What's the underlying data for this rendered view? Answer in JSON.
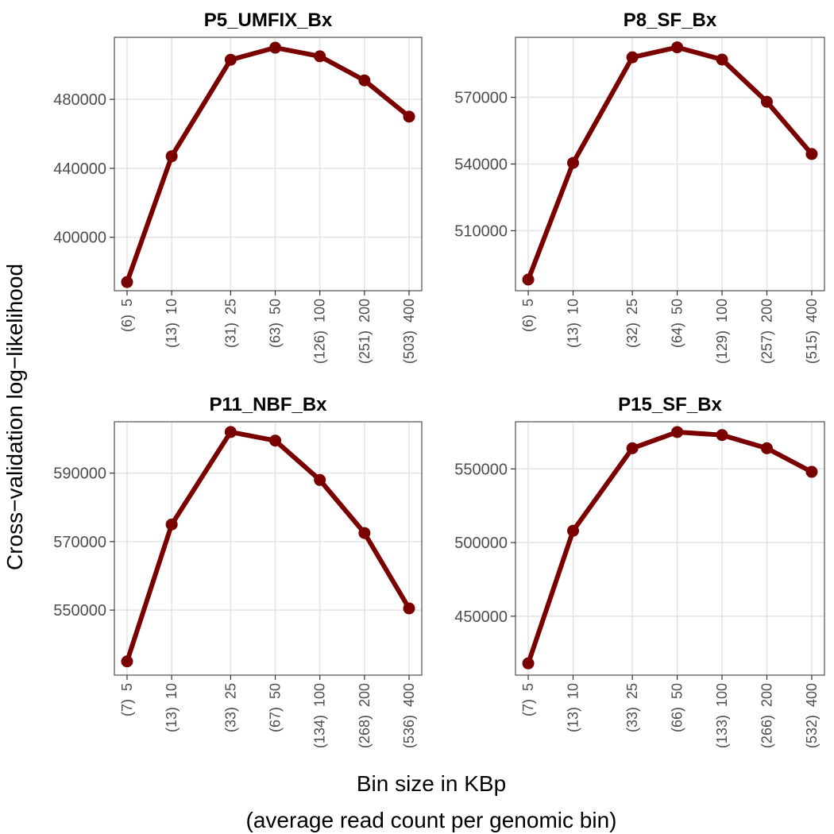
{
  "figure": {
    "ylabel": "Cross−validation log−likelihood",
    "xlabel_line1": "Bin size in KBp",
    "xlabel_line2": "(average read count per genomic bin)",
    "line_color": "#7a0000",
    "grid_color": "#e5e5e5",
    "border_color": "#4d4d4d"
  },
  "chart_data": [
    {
      "type": "line",
      "title": "P5_UMFIX_Bx",
      "x": [
        5,
        10,
        25,
        50,
        100,
        200,
        400
      ],
      "x_tick_labels": [
        "(6)  5",
        "(13)  10",
        "(31)  25",
        "(63)  50",
        "(126)  100",
        "(251)  200",
        "(503)  400"
      ],
      "x_scale": "log",
      "values": [
        374000,
        447000,
        503000,
        510000,
        505000,
        491000,
        470000
      ],
      "yticks": [
        400000,
        440000,
        480000
      ],
      "ylim": [
        369000,
        516000
      ],
      "grid": true
    },
    {
      "type": "line",
      "title": "P8_SF_Bx",
      "x": [
        5,
        10,
        25,
        50,
        100,
        200,
        400
      ],
      "x_tick_labels": [
        "(6)  5",
        "(13)  10",
        "(32)  25",
        "(64)  50",
        "(129)  100",
        "(257)  200",
        "(515)  400"
      ],
      "x_scale": "log",
      "values": [
        488000,
        540500,
        588000,
        592500,
        587000,
        568000,
        544500
      ],
      "yticks": [
        510000,
        540000,
        570000
      ],
      "ylim": [
        483000,
        597000
      ],
      "grid": true
    },
    {
      "type": "line",
      "title": "P11_NBF_Bx",
      "x": [
        5,
        10,
        25,
        50,
        100,
        200,
        400
      ],
      "x_tick_labels": [
        "(7)  5",
        "(13)  10",
        "(33)  25",
        "(67)  50",
        "(134)  100",
        "(268)  200",
        "(536)  400"
      ],
      "x_scale": "log",
      "values": [
        535000,
        575000,
        602000,
        599500,
        588000,
        572500,
        550500
      ],
      "yticks": [
        550000,
        570000,
        590000
      ],
      "ylim": [
        531000,
        605000
      ],
      "grid": true
    },
    {
      "type": "line",
      "title": "P15_SF_Bx",
      "x": [
        5,
        10,
        25,
        50,
        100,
        200,
        400
      ],
      "x_tick_labels": [
        "(7)  5",
        "(13)  10",
        "(33)  25",
        "(66)  50",
        "(133)  100",
        "(266)  200",
        "(532)  400"
      ],
      "x_scale": "log",
      "values": [
        418000,
        508000,
        564000,
        575000,
        573000,
        564000,
        548000
      ],
      "yticks": [
        450000,
        500000,
        550000
      ],
      "ylim": [
        410000,
        582000
      ],
      "grid": true
    }
  ]
}
